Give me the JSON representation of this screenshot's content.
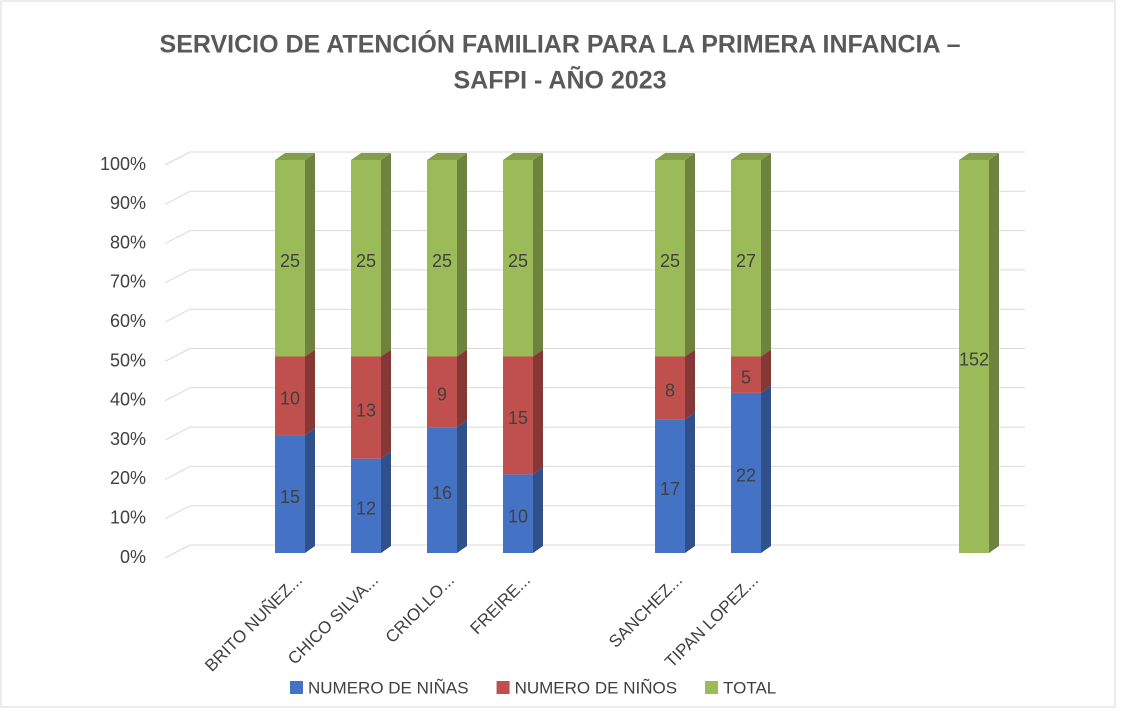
{
  "chart_data": {
    "type": "stacked_bar_100",
    "title": [
      "SERVICIO DE ATENCIÓN FAMILIAR PARA LA PRIMERA INFANCIA –",
      "SAFPI - AÑO 2023"
    ],
    "categories": [
      "BRITO NUÑEZ...",
      "CHICO SILVA...",
      "CRIOLLO...",
      "FREIRE...",
      null,
      "SANCHEZ...",
      "TIPAN LOPEZ...",
      null,
      null,
      null
    ],
    "series": [
      {
        "name": "NUMERO DE NIÑAS",
        "color": "#4472c4",
        "values": [
          15,
          12,
          16,
          10,
          null,
          17,
          22,
          null,
          null,
          null
        ]
      },
      {
        "name": "NUMERO DE NIÑOS",
        "color": "#c0504d",
        "values": [
          10,
          13,
          9,
          15,
          null,
          8,
          5,
          null,
          null,
          null
        ]
      },
      {
        "name": "TOTAL",
        "color": "#9bbb59",
        "values": [
          25,
          25,
          25,
          25,
          null,
          25,
          27,
          null,
          null,
          152
        ]
      }
    ],
    "ylim": [
      0,
      100
    ],
    "yticks": [
      {
        "value": 0,
        "label": "0%"
      },
      {
        "value": 10,
        "label": "10%"
      },
      {
        "value": 20,
        "label": "20%"
      },
      {
        "value": 30,
        "label": "30%"
      },
      {
        "value": 40,
        "label": "40%"
      },
      {
        "value": 50,
        "label": "50%"
      },
      {
        "value": 60,
        "label": "60%"
      },
      {
        "value": 70,
        "label": "70%"
      },
      {
        "value": 80,
        "label": "80%"
      },
      {
        "value": 90,
        "label": "90%"
      },
      {
        "value": 100,
        "label": "100%"
      }
    ],
    "grid": true,
    "legend": "bottom"
  }
}
